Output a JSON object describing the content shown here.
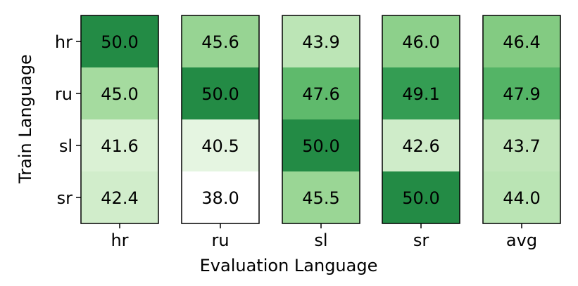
{
  "chart_data": {
    "type": "heatmap",
    "xlabel": "Evaluation Language",
    "ylabel": "Train Language",
    "rows": [
      "hr",
      "ru",
      "sl",
      "sr"
    ],
    "columns": [
      "hr",
      "ru",
      "sl",
      "sr",
      "avg"
    ],
    "values": [
      [
        50.0,
        45.6,
        43.9,
        46.0,
        46.4
      ],
      [
        45.0,
        50.0,
        47.6,
        49.1,
        47.9
      ],
      [
        41.6,
        40.5,
        50.0,
        42.6,
        43.7
      ],
      [
        42.4,
        38.0,
        45.5,
        50.0,
        44.0
      ]
    ],
    "colormap": "Greens",
    "grid": false
  }
}
